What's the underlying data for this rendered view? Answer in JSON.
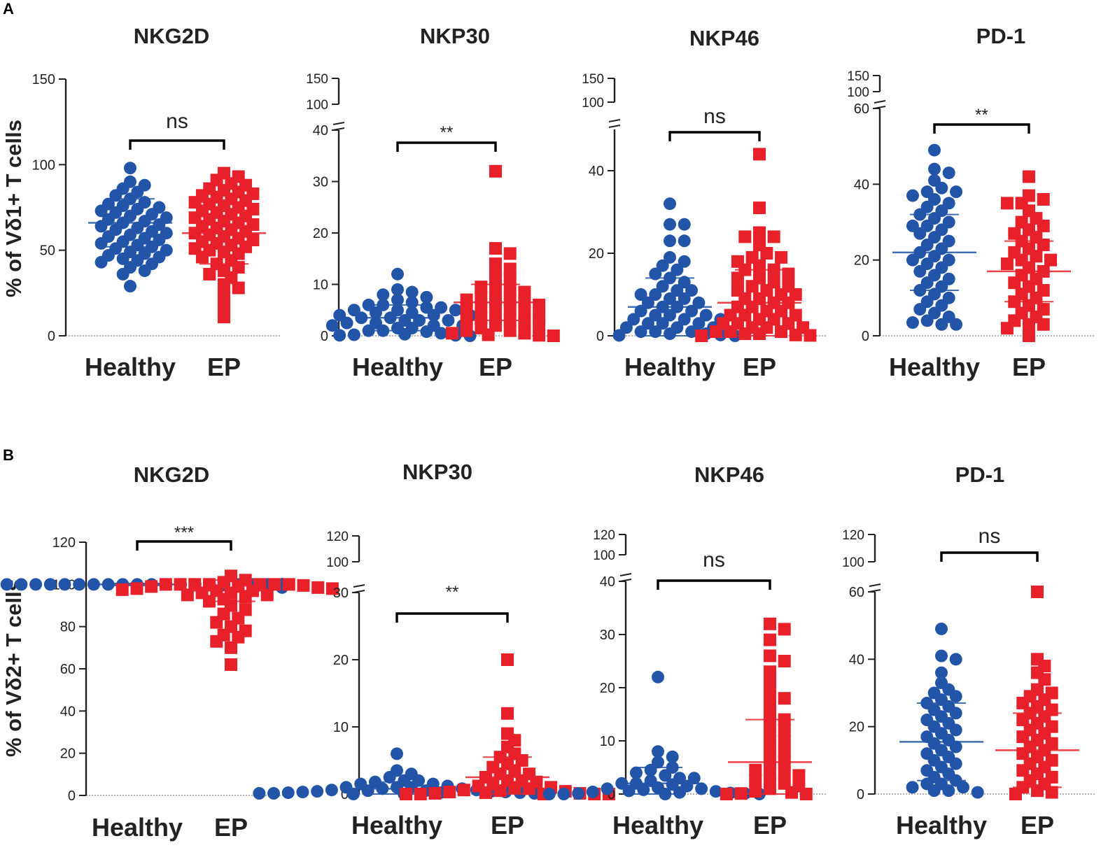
{
  "figure": {
    "panels": [
      {
        "id": "A",
        "label": "A",
        "ylabel": "% of Vδ1+ T cells"
      },
      {
        "id": "B",
        "label": "B",
        "ylabel": "% of Vδ2+ T cells"
      }
    ],
    "colors": {
      "healthy": "#2255a8",
      "ep": "#e8202a",
      "axis": "#222222",
      "text": "#222222"
    }
  },
  "chart_data": [
    {
      "panel": "A",
      "type": "scatter",
      "title": "NKG2D",
      "categories": [
        "Healthy",
        "EP"
      ],
      "significance": "ns",
      "y_breaks": null,
      "yticks": [
        0,
        50,
        100,
        150
      ],
      "ylim": [
        0,
        150
      ],
      "series": [
        {
          "name": "Healthy",
          "marker": "circle",
          "mean": 66,
          "sd": 14,
          "values": [
            98,
            90,
            88,
            86,
            84,
            82,
            80,
            78,
            77,
            76,
            75,
            74,
            73,
            72,
            71,
            70,
            69,
            68,
            67,
            66,
            65,
            64,
            63,
            62,
            61,
            60,
            59,
            58,
            57,
            56,
            55,
            54,
            53,
            52,
            51,
            50,
            49,
            48,
            47,
            46,
            45,
            44,
            43,
            42,
            40,
            38,
            36,
            29
          ]
        },
        {
          "name": "EP",
          "marker": "square",
          "mean": 60,
          "sd": 18,
          "values": [
            95,
            93,
            91,
            89,
            88,
            86,
            85,
            84,
            83,
            82,
            81,
            80,
            79,
            78,
            77,
            76,
            75,
            74,
            73,
            72,
            71,
            70,
            69,
            68,
            67,
            66,
            65,
            64,
            63,
            62,
            61,
            60,
            59,
            58,
            57,
            56,
            55,
            54,
            53,
            52,
            51,
            50,
            49,
            48,
            46,
            44,
            42,
            40,
            38,
            36,
            34,
            30,
            28,
            24,
            17,
            11
          ]
        }
      ]
    },
    {
      "panel": "A",
      "type": "scatter",
      "title": "NKP30",
      "categories": [
        "Healthy",
        "EP"
      ],
      "significance": "**",
      "y_breaks": {
        "lower": [
          0,
          40
        ],
        "upper": [
          100,
          150
        ]
      },
      "yticks": [
        0,
        10,
        20,
        30,
        40,
        100,
        150
      ],
      "series": [
        {
          "name": "Healthy",
          "marker": "circle",
          "mean": 3.5,
          "sd": 2.5,
          "values": [
            12,
            9,
            8.5,
            8,
            7.5,
            7,
            6.5,
            6,
            6,
            5.5,
            5.5,
            5,
            5,
            5,
            4.5,
            4.5,
            4,
            4,
            4,
            3.5,
            3.5,
            3,
            3,
            3,
            2.5,
            2.5,
            2,
            2,
            2,
            1.5,
            1.5,
            1,
            1,
            0.8,
            0.5,
            0.3,
            0.2,
            0.1,
            0.1,
            0
          ]
        },
        {
          "name": "EP",
          "marker": "square",
          "mean": 6.5,
          "sd": 3.5,
          "values": [
            32,
            17,
            16,
            14,
            13,
            12,
            11,
            10,
            9.5,
            9,
            8.5,
            8,
            7.5,
            7,
            7,
            6.5,
            6,
            6,
            5.5,
            5,
            5,
            4.5,
            4,
            4,
            3.5,
            3,
            3,
            2.5,
            2,
            2,
            1.5,
            1,
            1,
            0.5,
            0.5,
            0.2,
            0.1,
            0
          ]
        }
      ]
    },
    {
      "panel": "A",
      "type": "scatter",
      "title": "NKP46",
      "categories": [
        "Healthy",
        "EP"
      ],
      "significance": "ns",
      "y_breaks": {
        "lower": [
          0,
          50
        ],
        "upper": [
          100,
          150
        ]
      },
      "yticks": [
        0,
        20,
        40,
        100,
        150
      ],
      "series": [
        {
          "name": "Healthy",
          "marker": "circle",
          "mean": 7,
          "sd": 7,
          "values": [
            32,
            27,
            27,
            23,
            23,
            19,
            18,
            17,
            16,
            15,
            14,
            13,
            12,
            11,
            11,
            10,
            10,
            9,
            9,
            8,
            8,
            7,
            7,
            6,
            6,
            5,
            5,
            5,
            4,
            4,
            4,
            3,
            3,
            3,
            2,
            2,
            2,
            1,
            1,
            1,
            0.5,
            0.5,
            0.2,
            0.1,
            0
          ]
        },
        {
          "name": "EP",
          "marker": "square",
          "mean": 8,
          "sd": 8,
          "values": [
            44,
            31,
            25,
            24,
            24,
            22,
            20,
            19,
            19,
            18,
            17,
            16,
            16,
            15,
            14,
            14,
            13,
            12,
            12,
            11,
            11,
            10,
            10,
            9,
            9,
            8,
            8,
            7,
            7,
            6,
            6,
            5,
            5,
            5,
            4,
            4,
            3,
            3,
            3,
            2,
            2,
            2,
            1,
            1,
            1,
            0.5,
            0.5,
            0.2,
            0.1,
            0
          ]
        }
      ]
    },
    {
      "panel": "A",
      "type": "scatter",
      "title": "PD-1",
      "categories": [
        "Healthy",
        "EP"
      ],
      "significance": "**",
      "y_breaks": {
        "lower": [
          0,
          60
        ],
        "upper": [
          100,
          150
        ]
      },
      "yticks": [
        0,
        20,
        40,
        60,
        100,
        150
      ],
      "series": [
        {
          "name": "Healthy",
          "marker": "circle",
          "mean": 22,
          "sd": 10,
          "values": [
            49,
            44,
            43,
            41,
            39,
            38,
            38,
            37,
            36,
            35,
            34,
            33,
            32,
            31,
            30,
            29,
            29,
            28,
            27,
            26,
            25,
            24,
            23,
            22,
            21,
            20,
            20,
            19,
            18,
            17,
            16,
            15,
            14,
            13,
            12,
            11,
            10,
            9,
            8,
            7,
            6,
            5,
            4,
            3.5,
            3,
            3
          ]
        },
        {
          "name": "EP",
          "marker": "square",
          "mean": 17,
          "sd": 8,
          "values": [
            42,
            37,
            36,
            35,
            35,
            33,
            31,
            30,
            29,
            28,
            27,
            26,
            25,
            24,
            23,
            22,
            21,
            20,
            20,
            19,
            18,
            17,
            16,
            15,
            14,
            13,
            12,
            11,
            10,
            9,
            8,
            7,
            6,
            5,
            4,
            3,
            3,
            2,
            0
          ]
        }
      ]
    },
    {
      "panel": "B",
      "type": "scatter",
      "title": "NKG2D",
      "categories": [
        "Healthy",
        "EP"
      ],
      "significance": "***",
      "y_breaks": null,
      "yticks": [
        0,
        20,
        40,
        60,
        80,
        100,
        120
      ],
      "ylim": [
        0,
        120
      ],
      "series": [
        {
          "name": "Healthy",
          "marker": "circle",
          "mean": 100,
          "sd": 0.5,
          "values": [
            100,
            100,
            100,
            100,
            100,
            100,
            100,
            100,
            100,
            100,
            100,
            100,
            100,
            100,
            100,
            100,
            100,
            100,
            100,
            100,
            100,
            100,
            100,
            100,
            100,
            100,
            100,
            100,
            100,
            100,
            99.8,
            99.7,
            99.6,
            99.5,
            99.3,
            99.2,
            99,
            98.8,
            98.6,
            98.5
          ]
        },
        {
          "name": "EP",
          "marker": "square",
          "mean": 97,
          "sd": 5,
          "values": [
            104,
            102,
            101,
            100,
            100,
            100,
            100,
            100,
            100,
            100,
            99.5,
            99,
            99,
            98.5,
            98,
            98,
            97.5,
            97,
            97,
            96,
            96,
            95,
            95,
            94,
            93,
            92,
            90,
            88,
            86,
            84,
            82,
            80,
            78,
            76,
            75,
            73,
            70,
            62
          ]
        }
      ]
    },
    {
      "panel": "B",
      "type": "scatter",
      "title": "NKP30",
      "categories": [
        "Healthy",
        "EP"
      ],
      "significance": "**",
      "y_breaks": {
        "lower": [
          0,
          30
        ],
        "upper": [
          100,
          120
        ]
      },
      "yticks": [
        0,
        10,
        20,
        30,
        100,
        120
      ],
      "series": [
        {
          "name": "Healthy",
          "marker": "circle",
          "mean": 0.8,
          "sd": 1,
          "values": [
            6,
            3.5,
            3,
            2.5,
            2,
            2,
            1.8,
            1.5,
            1.5,
            1.2,
            1,
            1,
            1,
            0.8,
            0.8,
            0.6,
            0.6,
            0.5,
            0.5,
            0.4,
            0.4,
            0.3,
            0.3,
            0.2,
            0.2,
            0.2,
            0.1,
            0.1,
            0.1,
            0,
            0,
            0,
            0,
            0,
            0
          ]
        },
        {
          "name": "EP",
          "marker": "square",
          "mean": 2.5,
          "sd": 3,
          "values": [
            20,
            12,
            9,
            8,
            7,
            6,
            5.5,
            5,
            4.5,
            4,
            3.5,
            3,
            3,
            2.5,
            2,
            2,
            1.8,
            1.5,
            1.2,
            1,
            1,
            0.8,
            0.6,
            0.5,
            0.4,
            0.3,
            0.2,
            0.1,
            0.1,
            0,
            0,
            0,
            0,
            0
          ]
        }
      ]
    },
    {
      "panel": "B",
      "type": "scatter",
      "title": "NKP46",
      "categories": [
        "Healthy",
        "EP"
      ],
      "significance": "ns",
      "y_breaks": {
        "lower": [
          0,
          40
        ],
        "upper": [
          100,
          120
        ]
      },
      "yticks": [
        0,
        10,
        20,
        30,
        40,
        100,
        120
      ],
      "series": [
        {
          "name": "Healthy",
          "marker": "circle",
          "mean": 2,
          "sd": 3,
          "values": [
            22,
            8,
            7,
            6,
            5,
            4.5,
            4,
            3.5,
            3,
            3,
            2.5,
            2,
            2,
            1.8,
            1.5,
            1.2,
            1,
            1,
            0.8,
            0.6,
            0.5,
            0.4,
            0.3,
            0.2,
            0.1,
            0.1,
            0,
            0,
            0,
            0
          ]
        },
        {
          "name": "EP",
          "marker": "square",
          "mean": 6,
          "sd": 8,
          "values": [
            32,
            31,
            29,
            26,
            25,
            23,
            21,
            19,
            18,
            17,
            15,
            14,
            13,
            12,
            11,
            10,
            9,
            8,
            7,
            6,
            5,
            4.5,
            4,
            3.5,
            3,
            2.5,
            2,
            1.5,
            1,
            0.5,
            0.3,
            0.1,
            0,
            0
          ]
        }
      ]
    },
    {
      "panel": "B",
      "type": "scatter",
      "title": "PD-1",
      "categories": [
        "Healthy",
        "EP"
      ],
      "significance": "ns",
      "y_breaks": {
        "lower": [
          0,
          60
        ],
        "upper": [
          100,
          120
        ]
      },
      "yticks": [
        0,
        20,
        40,
        60,
        100,
        120
      ],
      "series": [
        {
          "name": "Healthy",
          "marker": "circle",
          "mean": 15.5,
          "sd": 11.5,
          "values": [
            49,
            41,
            40,
            36,
            33,
            31,
            30,
            29,
            28,
            27,
            26,
            25,
            24,
            23,
            22,
            21,
            20,
            19,
            18,
            17,
            16,
            15,
            14,
            13,
            12,
            11,
            10,
            9,
            8,
            7,
            6,
            5,
            4,
            3,
            3,
            2,
            2,
            1,
            1,
            0.5
          ]
        },
        {
          "name": "EP",
          "marker": "square",
          "mean": 13,
          "sd": 11,
          "values": [
            60,
            40,
            38,
            36,
            34,
            31,
            30,
            29,
            28,
            27,
            26,
            25,
            24,
            23,
            22,
            21,
            20,
            19,
            18,
            17,
            16,
            15,
            14,
            13,
            12,
            11,
            10,
            9,
            8,
            7,
            6,
            5,
            4,
            3,
            2,
            1,
            0.5,
            0
          ]
        }
      ]
    }
  ]
}
